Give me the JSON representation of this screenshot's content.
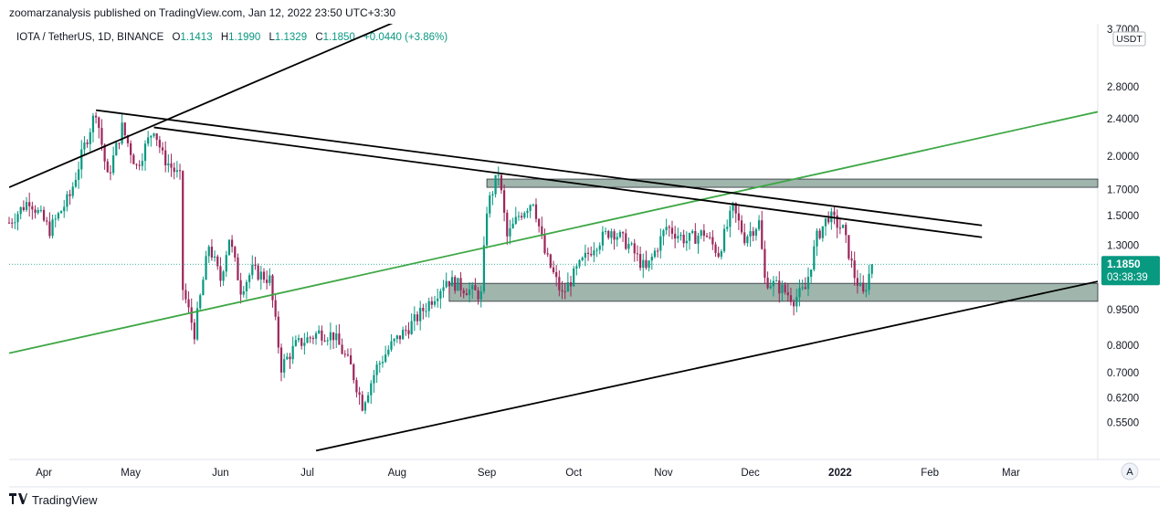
{
  "publisher": "zoomarzanalysis published on TradingView.com, Jan 12, 2022 23:50 UTC+3:30",
  "legend": {
    "symbol": "IOTA / TetherUS, 1D, BINANCE",
    "open_label": "O",
    "open": "1.1413",
    "high_label": "H",
    "high": "1.1990",
    "low_label": "L",
    "low": "1.1329",
    "close_label": "C",
    "close": "1.1850",
    "change": "+0.0440 (+3.86%)"
  },
  "currency_badge": "USDT",
  "price_badge": {
    "price": "1.1850",
    "countdown": "03:38:39"
  },
  "scale_mode_button": "A",
  "footer_brand": "TradingView",
  "colors": {
    "up": "#089981",
    "down": "#9c275b",
    "zone_fill": "#8fa89c",
    "trend_green": "#3da745",
    "trend_black": "#000000"
  },
  "chart_data": {
    "type": "candlestick",
    "log_scale": true,
    "ylim": [
      0.46,
      3.8
    ],
    "y_ticks": [
      "3.7000",
      "2.8000",
      "2.4000",
      "2.0000",
      "1.7000",
      "1.5000",
      "1.3000",
      "0.9500",
      "0.8000",
      "0.7000",
      "0.6200",
      "0.5500"
    ],
    "y_tick_values": [
      3.7,
      2.8,
      2.4,
      2.0,
      1.7,
      1.5,
      1.3,
      0.95,
      0.8,
      0.7,
      0.62,
      0.55
    ],
    "x_start": "2021-03-20",
    "x_end": "2022-03-31",
    "x_ticks": [
      {
        "label": "Apr",
        "date": "2021-04-01"
      },
      {
        "label": "May",
        "date": "2021-05-01"
      },
      {
        "label": "Jun",
        "date": "2021-06-01"
      },
      {
        "label": "Jul",
        "date": "2021-07-01"
      },
      {
        "label": "Aug",
        "date": "2021-08-01"
      },
      {
        "label": "Sep",
        "date": "2021-09-01"
      },
      {
        "label": "Oct",
        "date": "2021-10-01"
      },
      {
        "label": "Nov",
        "date": "2021-11-01"
      },
      {
        "label": "Dec",
        "date": "2021-12-01"
      },
      {
        "label": "2022",
        "date": "2022-01-01",
        "bold": true
      },
      {
        "label": "Feb",
        "date": "2022-02-01"
      },
      {
        "label": "Mar",
        "date": "2022-03-01"
      }
    ],
    "last_price": 1.185,
    "candles_date_start": "2021-03-20",
    "close_path": [
      [
        "2021-03-20",
        1.45
      ],
      [
        "2021-03-27",
        1.62
      ],
      [
        "2021-04-03",
        1.4
      ],
      [
        "2021-04-10",
        1.65
      ],
      [
        "2021-04-15",
        2.1
      ],
      [
        "2021-04-19",
        2.5
      ],
      [
        "2021-04-23",
        1.8
      ],
      [
        "2021-04-28",
        2.3
      ],
      [
        "2021-05-03",
        1.9
      ],
      [
        "2021-05-09",
        2.3
      ],
      [
        "2021-05-12",
        2.0
      ],
      [
        "2021-05-18",
        1.8
      ],
      [
        "2021-05-19",
        1.05
      ],
      [
        "2021-05-23",
        0.85
      ],
      [
        "2021-05-28",
        1.3
      ],
      [
        "2021-06-01",
        1.1
      ],
      [
        "2021-06-04",
        1.35
      ],
      [
        "2021-06-08",
        1.05
      ],
      [
        "2021-06-12",
        1.15
      ],
      [
        "2021-06-18",
        1.1
      ],
      [
        "2021-06-22",
        0.72
      ],
      [
        "2021-06-27",
        0.8
      ],
      [
        "2021-07-05",
        0.85
      ],
      [
        "2021-07-10",
        0.84
      ],
      [
        "2021-07-16",
        0.72
      ],
      [
        "2021-07-20",
        0.6
      ],
      [
        "2021-07-25",
        0.72
      ],
      [
        "2021-07-30",
        0.8
      ],
      [
        "2021-08-07",
        0.9
      ],
      [
        "2021-08-14",
        1.02
      ],
      [
        "2021-08-18",
        1.1
      ],
      [
        "2021-08-25",
        1.05
      ],
      [
        "2021-08-30",
        1.02
      ],
      [
        "2021-09-01",
        1.55
      ],
      [
        "2021-09-05",
        1.85
      ],
      [
        "2021-09-08",
        1.35
      ],
      [
        "2021-09-12",
        1.5
      ],
      [
        "2021-09-17",
        1.62
      ],
      [
        "2021-09-21",
        1.25
      ],
      [
        "2021-09-27",
        1.02
      ],
      [
        "2021-10-02",
        1.15
      ],
      [
        "2021-10-08",
        1.3
      ],
      [
        "2021-10-14",
        1.4
      ],
      [
        "2021-10-20",
        1.3
      ],
      [
        "2021-10-26",
        1.15
      ],
      [
        "2021-11-02",
        1.42
      ],
      [
        "2021-11-09",
        1.33
      ],
      [
        "2021-11-15",
        1.38
      ],
      [
        "2021-11-20",
        1.25
      ],
      [
        "2021-11-25",
        1.55
      ],
      [
        "2021-11-29",
        1.35
      ],
      [
        "2021-12-04",
        1.45
      ],
      [
        "2021-12-06",
        1.1
      ],
      [
        "2021-12-12",
        1.05
      ],
      [
        "2021-12-16",
        1.0
      ],
      [
        "2021-12-20",
        1.05
      ],
      [
        "2021-12-24",
        1.35
      ],
      [
        "2021-12-28",
        1.5
      ],
      [
        "2022-01-02",
        1.4
      ],
      [
        "2022-01-06",
        1.12
      ],
      [
        "2022-01-09",
        1.02
      ],
      [
        "2022-01-12",
        1.185
      ]
    ],
    "zones": [
      {
        "name": "resistance-zone",
        "x0": "2021-09-01",
        "x1": "2022-03-31",
        "y0": 1.72,
        "y1": 1.79
      },
      {
        "name": "support-zone",
        "x0": "2021-08-19",
        "x1": "2022-03-31",
        "y0": 0.99,
        "y1": 1.08
      }
    ],
    "trendlines": [
      {
        "name": "upper-channel-line",
        "color": "black",
        "p0": [
          "2021-03-20",
          1.72
        ],
        "p1": [
          "2021-08-01",
          3.85
        ]
      },
      {
        "name": "lower-channel-line",
        "color": "black",
        "p0": [
          "2021-07-04",
          0.48
        ],
        "p1": [
          "2022-03-31",
          1.09
        ]
      },
      {
        "name": "green-trendline",
        "color": "green",
        "p0": [
          "2021-03-20",
          0.77
        ],
        "p1": [
          "2022-03-31",
          2.48
        ]
      },
      {
        "name": "descending-line-1",
        "color": "black",
        "p0": [
          "2021-04-19",
          2.5
        ],
        "p1": [
          "2022-02-19",
          1.43
        ]
      },
      {
        "name": "descending-line-2",
        "color": "black",
        "p0": [
          "2021-05-09",
          2.3
        ],
        "p1": [
          "2022-02-19",
          1.35
        ]
      }
    ]
  }
}
